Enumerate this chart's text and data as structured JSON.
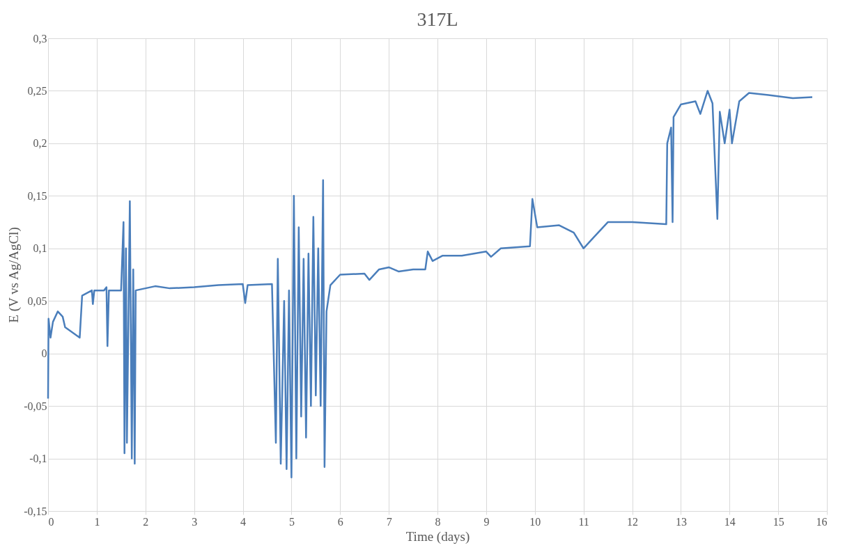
{
  "chart_data": {
    "type": "line",
    "title": "317L",
    "xlabel": "Time (days)",
    "ylabel": "E (V vs Ag/AgCl)",
    "xlim": [
      0,
      16
    ],
    "xticks": [
      0,
      1,
      2,
      3,
      4,
      5,
      6,
      7,
      8,
      9,
      10,
      11,
      12,
      13,
      14,
      15,
      16
    ],
    "ylim": [
      -0.15,
      0.3
    ],
    "yticks": [
      {
        "value": -0.15,
        "label": "-0,15"
      },
      {
        "value": -0.1,
        "label": "-0,1"
      },
      {
        "value": -0.05,
        "label": "-0,05"
      },
      {
        "value": 0,
        "label": "0"
      },
      {
        "value": 0.05,
        "label": "0,05"
      },
      {
        "value": 0.1,
        "label": "0,1"
      },
      {
        "value": 0.15,
        "label": "0,15"
      },
      {
        "value": 0.2,
        "label": "0,2"
      },
      {
        "value": 0.25,
        "label": "0,25"
      },
      {
        "value": 0.3,
        "label": "0,3"
      }
    ],
    "grid": true,
    "marker": "none",
    "line_style": "solid",
    "series": [
      {
        "color": "#4a7ebb",
        "x": [
          0,
          0.01,
          0.05,
          0.1,
          0.2,
          0.3,
          0.35,
          0.5,
          0.65,
          0.7,
          0.9,
          0.92,
          0.95,
          1.15,
          1.2,
          1.22,
          1.25,
          1.5,
          1.55,
          1.57,
          1.6,
          1.62,
          1.68,
          1.72,
          1.75,
          1.78,
          1.8,
          2.0,
          2.2,
          2.5,
          3,
          3.5,
          4,
          4.05,
          4.1,
          4.6,
          4.68,
          4.72,
          4.78,
          4.85,
          4.9,
          4.95,
          5.0,
          5.05,
          5.1,
          5.15,
          5.2,
          5.25,
          5.3,
          5.35,
          5.4,
          5.45,
          5.5,
          5.55,
          5.6,
          5.65,
          5.68,
          5.72,
          5.8,
          6,
          6.5,
          6.6,
          6.8,
          7,
          7.2,
          7.5,
          7.75,
          7.8,
          7.9,
          8.1,
          8.5,
          9,
          9.1,
          9.3,
          9.9,
          9.95,
          10.05,
          10.5,
          10.8,
          11,
          11.2,
          11.5,
          12,
          12.7,
          12.72,
          12.8,
          12.83,
          12.85,
          13,
          13.3,
          13.4,
          13.55,
          13.65,
          13.75,
          13.8,
          13.9,
          14,
          14.05,
          14.2,
          14.4,
          14.8,
          15.3,
          15.7
        ],
        "values": [
          -0.043,
          0.033,
          0.015,
          0.03,
          0.04,
          0.035,
          0.025,
          0.02,
          0.015,
          0.055,
          0.06,
          0.047,
          0.06,
          0.06,
          0.063,
          0.007,
          0.06,
          0.06,
          0.125,
          -0.095,
          0.1,
          -0.085,
          0.145,
          -0.1,
          0.08,
          -0.105,
          0.06,
          0.062,
          0.064,
          0.062,
          0.063,
          0.065,
          0.066,
          0.048,
          0.065,
          0.066,
          -0.085,
          0.09,
          -0.105,
          0.05,
          -0.11,
          0.06,
          -0.118,
          0.15,
          -0.1,
          0.12,
          -0.06,
          0.09,
          -0.08,
          0.095,
          -0.05,
          0.13,
          -0.04,
          0.1,
          -0.05,
          0.165,
          -0.108,
          0.04,
          0.065,
          0.075,
          0.076,
          0.07,
          0.08,
          0.082,
          0.078,
          0.08,
          0.08,
          0.097,
          0.088,
          0.093,
          0.093,
          0.097,
          0.092,
          0.1,
          0.102,
          0.147,
          0.12,
          0.122,
          0.115,
          0.1,
          0.11,
          0.125,
          0.125,
          0.123,
          0.2,
          0.215,
          0.125,
          0.225,
          0.237,
          0.24,
          0.228,
          0.25,
          0.238,
          0.128,
          0.23,
          0.2,
          0.232,
          0.2,
          0.24,
          0.248,
          0.246,
          0.243,
          0.244
        ]
      }
    ]
  }
}
